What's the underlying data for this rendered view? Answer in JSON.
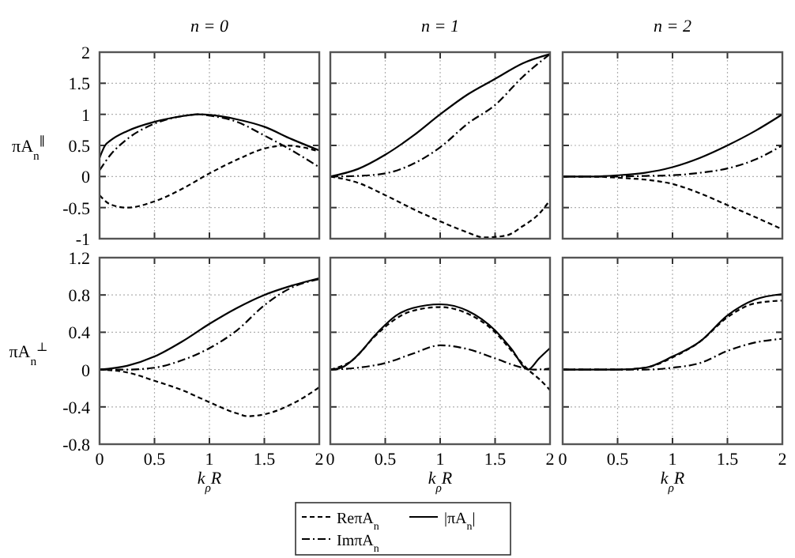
{
  "chart_data": [
    {
      "type": "line",
      "title": "n = 0",
      "ylabel": "πA$_{n}$$^{∥}$",
      "xlim": [
        0,
        2
      ],
      "xticks": [
        0,
        0.5,
        1,
        1.5,
        2
      ],
      "ylim": [
        -1,
        2
      ],
      "yticks": [
        -1,
        -0.5,
        0,
        0.5,
        1,
        1.5,
        2
      ],
      "grid": true,
      "tick_labels": "y",
      "series": [
        {
          "color": "#000000",
          "line_style": "dashed",
          "x": [
            0,
            0.1,
            0.25,
            0.5,
            0.75,
            1,
            1.25,
            1.5,
            1.7,
            1.85,
            2
          ],
          "values": [
            -0.3,
            -0.45,
            -0.5,
            -0.4,
            -0.2,
            0.05,
            0.27,
            0.45,
            0.5,
            0.47,
            0.4
          ]
        },
        {
          "color": "#000000",
          "line_style": "dashdot",
          "x": [
            0,
            0.1,
            0.25,
            0.5,
            0.75,
            0.9,
            1,
            1.25,
            1.5,
            1.75,
            2
          ],
          "values": [
            0.1,
            0.35,
            0.6,
            0.85,
            0.97,
            1.0,
            0.98,
            0.88,
            0.66,
            0.42,
            0.15
          ]
        },
        {
          "color": "#000000",
          "line_style": "solid",
          "x": [
            0,
            0.05,
            0.1,
            0.25,
            0.5,
            0.75,
            0.9,
            1,
            1.25,
            1.5,
            1.75,
            2
          ],
          "values": [
            0.3,
            0.5,
            0.58,
            0.73,
            0.88,
            0.97,
            1.0,
            0.99,
            0.92,
            0.8,
            0.6,
            0.42
          ]
        }
      ]
    },
    {
      "type": "line",
      "title": "n = 1",
      "xlim": [
        0,
        2
      ],
      "xticks": [
        0,
        0.5,
        1,
        1.5,
        2
      ],
      "ylim": [
        -1,
        2
      ],
      "yticks": [
        -1,
        -0.5,
        0,
        0.5,
        1,
        1.5,
        2
      ],
      "grid": true,
      "tick_labels": false,
      "series": [
        {
          "color": "#000000",
          "line_style": "dashed",
          "x": [
            0,
            0.25,
            0.5,
            0.75,
            1,
            1.25,
            1.4,
            1.6,
            1.75,
            1.9,
            2
          ],
          "values": [
            0,
            -0.1,
            -0.3,
            -0.52,
            -0.72,
            -0.9,
            -0.98,
            -0.95,
            -0.8,
            -0.6,
            -0.38
          ]
        },
        {
          "color": "#000000",
          "line_style": "dashdot",
          "x": [
            0,
            0.25,
            0.5,
            0.75,
            1,
            1.25,
            1.5,
            1.75,
            2
          ],
          "values": [
            0,
            0.01,
            0.05,
            0.2,
            0.47,
            0.85,
            1.15,
            1.6,
            1.97
          ]
        },
        {
          "color": "#000000",
          "line_style": "solid",
          "x": [
            0,
            0.25,
            0.5,
            0.75,
            1,
            1.25,
            1.5,
            1.75,
            2
          ],
          "values": [
            0,
            0.12,
            0.35,
            0.65,
            1.0,
            1.32,
            1.57,
            1.82,
            1.97
          ]
        }
      ]
    },
    {
      "type": "line",
      "title": "n = 2",
      "xlim": [
        0,
        2
      ],
      "xticks": [
        0,
        0.5,
        1,
        1.5,
        2
      ],
      "ylim": [
        -1,
        2
      ],
      "yticks": [
        -1,
        -0.5,
        0,
        0.5,
        1,
        1.5,
        2
      ],
      "grid": true,
      "tick_labels": false,
      "series": [
        {
          "color": "#000000",
          "line_style": "dashed",
          "x": [
            0,
            0.25,
            0.5,
            0.75,
            1,
            1.25,
            1.5,
            1.75,
            2
          ],
          "values": [
            0,
            0,
            -0.02,
            -0.05,
            -0.12,
            -0.27,
            -0.46,
            -0.65,
            -0.85
          ]
        },
        {
          "color": "#000000",
          "line_style": "dashdot",
          "x": [
            0,
            0.5,
            0.75,
            1,
            1.25,
            1.5,
            1.75,
            2
          ],
          "values": [
            0,
            0,
            0.01,
            0.02,
            0.06,
            0.13,
            0.27,
            0.5
          ]
        },
        {
          "color": "#000000",
          "line_style": "solid",
          "x": [
            0,
            0.25,
            0.5,
            0.75,
            1,
            1.25,
            1.5,
            1.75,
            2
          ],
          "values": [
            0,
            0,
            0.02,
            0.06,
            0.15,
            0.3,
            0.5,
            0.73,
            1.0
          ]
        }
      ]
    },
    {
      "type": "line",
      "ylabel": "πA$_{n}$$^{⊥}$",
      "xlabel": "k$_{ρ}$R",
      "xlim": [
        0,
        2
      ],
      "xticks": [
        0,
        0.5,
        1,
        1.5,
        2
      ],
      "ylim": [
        -0.8,
        1.2
      ],
      "yticks": [
        -0.8,
        -0.4,
        0,
        0.4,
        0.8,
        1.2
      ],
      "grid": true,
      "series": [
        {
          "color": "#000000",
          "line_style": "dashed",
          "x": [
            0,
            0.25,
            0.5,
            0.75,
            1,
            1.25,
            1.35,
            1.5,
            1.75,
            2
          ],
          "values": [
            0,
            -0.03,
            -0.12,
            -0.22,
            -0.35,
            -0.47,
            -0.5,
            -0.48,
            -0.37,
            -0.19
          ]
        },
        {
          "color": "#000000",
          "line_style": "dashdot",
          "x": [
            0,
            0.25,
            0.5,
            0.75,
            1,
            1.25,
            1.5,
            1.75,
            2
          ],
          "values": [
            0,
            0,
            0.02,
            0.1,
            0.23,
            0.42,
            0.69,
            0.88,
            0.97
          ]
        },
        {
          "color": "#000000",
          "line_style": "solid",
          "x": [
            0,
            0.25,
            0.5,
            0.75,
            1,
            1.25,
            1.5,
            1.75,
            2
          ],
          "values": [
            0,
            0.04,
            0.14,
            0.3,
            0.49,
            0.66,
            0.8,
            0.9,
            0.98
          ]
        }
      ]
    },
    {
      "type": "line",
      "xlabel": "k$_{ρ}$R",
      "xlim": [
        0,
        2
      ],
      "xticks": [
        0,
        0.5,
        1,
        1.5,
        2
      ],
      "ylim": [
        -0.8,
        1.2
      ],
      "yticks": [
        -0.8,
        -0.4,
        0,
        0.4,
        0.8,
        1.2
      ],
      "grid": true,
      "tick_labels": "x",
      "legend": "bottom",
      "series": [
        {
          "name": "ReπA$_{n}$",
          "color": "#000000",
          "line_style": "dashed",
          "x": [
            0,
            0.2,
            0.4,
            0.5,
            0.75,
            1,
            1.25,
            1.5,
            1.65,
            1.8,
            1.9,
            2
          ],
          "values": [
            0,
            0.1,
            0.35,
            0.46,
            0.63,
            0.67,
            0.6,
            0.4,
            0.2,
            0,
            -0.1,
            -0.22
          ]
        },
        {
          "name": "ImπA$_{n}$",
          "color": "#000000",
          "line_style": "dashdot",
          "x": [
            0,
            0.25,
            0.5,
            0.75,
            1,
            1.25,
            1.5,
            1.75,
            1.85,
            2
          ],
          "values": [
            0,
            0.02,
            0.07,
            0.17,
            0.26,
            0.22,
            0.12,
            0.02,
            0,
            0.01
          ]
        },
        {
          "name": "|πA$_{n}$|",
          "color": "#000000",
          "line_style": "solid",
          "x": [
            0,
            0.1,
            0.2,
            0.3,
            0.4,
            0.5,
            0.6,
            0.75,
            1,
            1.25,
            1.5,
            1.65,
            1.8,
            1.9,
            2
          ],
          "values": [
            0,
            0.02,
            0.1,
            0.22,
            0.36,
            0.48,
            0.58,
            0.66,
            0.7,
            0.63,
            0.42,
            0.22,
            0,
            0.12,
            0.23
          ]
        }
      ]
    },
    {
      "type": "line",
      "xlabel": "k$_{ρ}$R",
      "xlim": [
        0,
        2
      ],
      "xticks": [
        0,
        0.5,
        1,
        1.5,
        2
      ],
      "ylim": [
        -0.8,
        1.2
      ],
      "yticks": [
        -0.8,
        -0.4,
        0,
        0.4,
        0.8,
        1.2
      ],
      "grid": true,
      "tick_labels": "x",
      "series": [
        {
          "color": "#000000",
          "line_style": "dashed",
          "x": [
            0,
            0.5,
            0.75,
            1,
            1.25,
            1.5,
            1.75,
            2
          ],
          "values": [
            0,
            0,
            0.02,
            0.13,
            0.3,
            0.56,
            0.71,
            0.74
          ]
        },
        {
          "color": "#000000",
          "line_style": "dashdot",
          "x": [
            0,
            0.5,
            0.75,
            1,
            1.25,
            1.5,
            1.75,
            2
          ],
          "values": [
            0,
            0,
            0,
            0.02,
            0.07,
            0.2,
            0.29,
            0.33
          ]
        },
        {
          "color": "#000000",
          "line_style": "solid",
          "x": [
            0,
            0.5,
            0.75,
            1,
            1.25,
            1.5,
            1.75,
            2
          ],
          "values": [
            0,
            0,
            0.02,
            0.14,
            0.3,
            0.58,
            0.75,
            0.81
          ]
        }
      ]
    }
  ]
}
